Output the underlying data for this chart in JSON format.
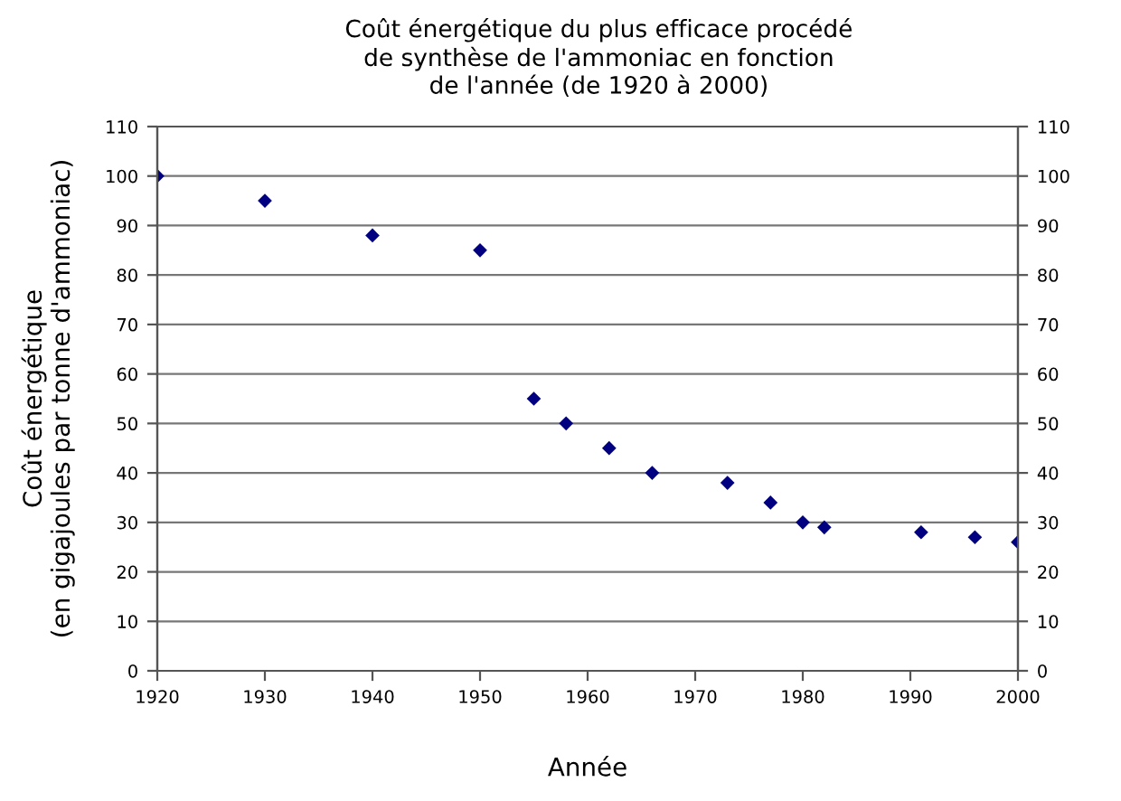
{
  "chart_data": {
    "type": "scatter",
    "title": "Coût énergétique du plus efficace procédé\nde synthèse de l'ammoniac en fonction\nde l'année (de 1920 à 2000)",
    "xlabel": "Année",
    "ylabel": "Coût énergétique\n(en gigajoules par tonne d'ammoniac)",
    "x": [
      1920,
      1930,
      1940,
      1950,
      1955,
      1958,
      1962,
      1966,
      1973,
      1977,
      1980,
      1982,
      1991,
      1996,
      2000
    ],
    "values": [
      100,
      95,
      88,
      85,
      55,
      50,
      45,
      40,
      38,
      34,
      30,
      29,
      28,
      27,
      26
    ],
    "color": "#000080",
    "marker": "diamond",
    "xlim": [
      1920,
      2000
    ],
    "xticks": [
      1920,
      1930,
      1940,
      1950,
      1960,
      1970,
      1980,
      1990,
      2000
    ],
    "ylim": [
      0,
      110
    ],
    "yticks": [
      0,
      10,
      20,
      30,
      40,
      50,
      60,
      70,
      80,
      90,
      100,
      110
    ],
    "y2lim": [
      0,
      110
    ],
    "y2ticks": [
      0,
      10,
      20,
      30,
      40,
      50,
      60,
      70,
      80,
      90,
      100,
      110
    ],
    "grid": "y"
  }
}
